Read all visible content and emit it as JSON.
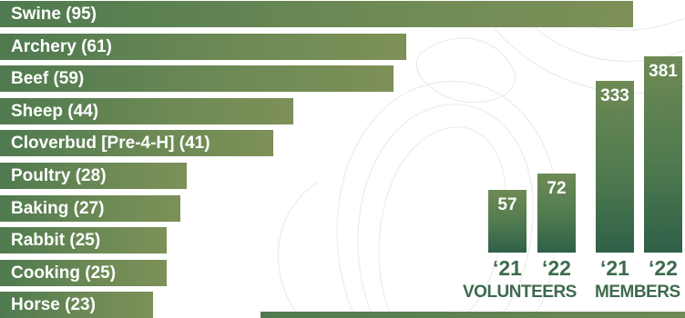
{
  "chart_data": [
    {
      "type": "bar",
      "orientation": "horizontal",
      "categories": [
        "Swine",
        "Archery",
        "Beef",
        "Sheep",
        "Cloverbud [Pre-4-H]",
        "Poultry",
        "Baking",
        "Rabbit",
        "Cooking",
        "Horse"
      ],
      "values": [
        95,
        61,
        59,
        44,
        41,
        28,
        27,
        25,
        25,
        23
      ],
      "labels": [
        "Swine (95)",
        "Archery (61)",
        "Beef (59)",
        "Sheep (44)",
        "Cloverbud [Pre-4-H] (41)",
        "Poultry (28)",
        "Baking (27)",
        "Rabbit (25)",
        "Cooking (25)",
        "Horse (23)"
      ],
      "xlim": [
        0,
        100
      ]
    },
    {
      "type": "bar",
      "groups": [
        {
          "name": "VOLUNTEERS",
          "categories": [
            "‘21",
            "‘22"
          ],
          "values": [
            57,
            72
          ]
        },
        {
          "name": "MEMBERS",
          "categories": [
            "‘21",
            "‘22"
          ],
          "values": [
            333,
            381
          ]
        }
      ],
      "value_labels": [
        "57",
        "72",
        "333",
        "381"
      ]
    }
  ],
  "colors": {
    "bar_light": "#7d9058",
    "bar_dark": "#2f6048",
    "text_green": "#3e6a4e"
  }
}
